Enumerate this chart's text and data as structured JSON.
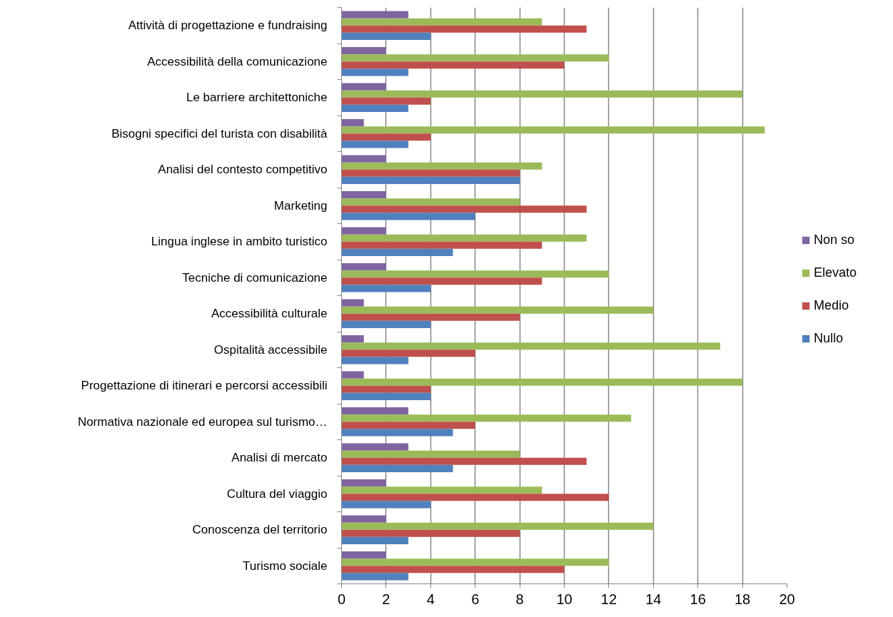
{
  "chart_data": {
    "type": "bar",
    "orientation": "horizontal",
    "categories": [
      "Attività di progettazione e fundraising",
      "Accessibilità della comunicazione",
      "Le barriere architettoniche",
      "Bisogni specifici del turista con disabilità",
      "Analisi del contesto competitivo",
      "Marketing",
      "Lingua inglese in ambito turistico",
      "Tecniche di comunicazione",
      "Accessibilità culturale",
      "Ospitalità accessibile",
      "Progettazione di itinerari e percorsi accessibili",
      "Normativa nazionale ed europea sul turismo…",
      "Analisi di mercato",
      "Cultura del viaggio",
      "Conoscenza del territorio",
      "Turismo sociale"
    ],
    "series": [
      {
        "name": "Non so",
        "color": "#8064a2",
        "values": [
          3,
          2,
          2,
          1,
          2,
          2,
          2,
          2,
          1,
          1,
          1,
          3,
          3,
          2,
          2,
          2
        ]
      },
      {
        "name": "Elevato",
        "color": "#9bbb59",
        "values": [
          9,
          12,
          18,
          19,
          9,
          8,
          11,
          12,
          14,
          17,
          18,
          13,
          8,
          9,
          14,
          12
        ]
      },
      {
        "name": "Medio",
        "color": "#c0504d",
        "values": [
          11,
          10,
          4,
          4,
          8,
          11,
          9,
          9,
          8,
          6,
          4,
          6,
          11,
          12,
          8,
          10
        ]
      },
      {
        "name": "Nullo",
        "color": "#4f81bd",
        "values": [
          4,
          3,
          3,
          3,
          8,
          6,
          5,
          4,
          4,
          3,
          4,
          5,
          5,
          4,
          3,
          3
        ]
      }
    ],
    "xlim": [
      0,
      20
    ],
    "xticks": [
      0,
      2,
      4,
      6,
      8,
      10,
      12,
      14,
      16,
      18,
      20
    ],
    "grid": "x",
    "legend": "right"
  }
}
